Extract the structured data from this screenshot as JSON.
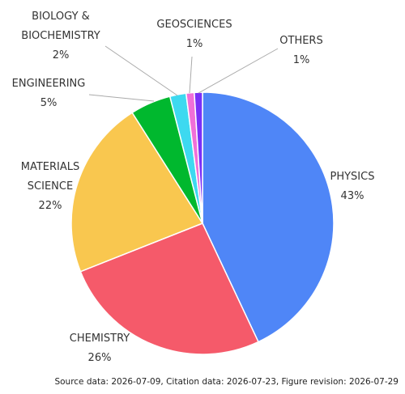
{
  "chart_data": {
    "type": "pie",
    "categories": [
      "PHYSICS",
      "CHEMISTRY",
      "MATERIALS SCIENCE",
      "ENGINEERING",
      "BIOLOGY & BIOCHEMISTRY",
      "GEOSCIENCES",
      "OTHERS"
    ],
    "values": [
      43,
      26,
      22,
      5,
      2,
      1,
      1
    ],
    "value_labels": [
      "43%",
      "26%",
      "22%",
      "5%",
      "2%",
      "1%",
      "1%"
    ],
    "colors": [
      "#4f86f7",
      "#f55a6a",
      "#f9c74f",
      "#00b82e",
      "#3dd9f0",
      "#f06fd8",
      "#7b2ff7"
    ],
    "note": "Source data: 2026-07-09, Citation data: 2026-07-23, Figure revision: 2026-07-29"
  }
}
